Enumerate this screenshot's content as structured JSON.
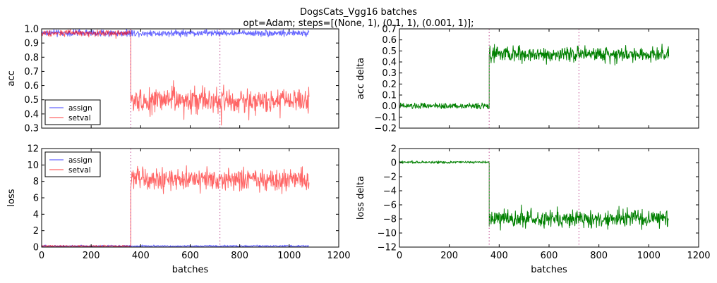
{
  "figure": {
    "title_line1": "DogsCats_Vgg16 batches",
    "title_line2": "opt=Adam; steps=[(None, 1), (0.1, 1), (0.001, 1)];"
  },
  "colors": {
    "assign": "#0000ff",
    "setval": "#ff0000",
    "delta": "#008000",
    "vline": "#c864a0"
  },
  "chart_data": [
    {
      "id": "acc",
      "type": "line",
      "title": "",
      "xlabel": "",
      "ylabel": "acc",
      "xlim": [
        0,
        1200
      ],
      "ylim": [
        0.3,
        1.0
      ],
      "xticks": [],
      "xtick_labels": [],
      "yticks": [
        0.3,
        0.4,
        0.5,
        0.6,
        0.7,
        0.8,
        0.9,
        1.0
      ],
      "ytick_labels": [
        "0.3",
        "0.4",
        "0.5",
        "0.6",
        "0.7",
        "0.8",
        "0.9",
        "1.0"
      ],
      "grid": false,
      "legend": "lower-left",
      "vlines": [
        360,
        720
      ],
      "series": [
        {
          "name": "assign",
          "color": "#0000ff",
          "alpha": 0.6,
          "segments": [
            {
              "x0": 0,
              "x1": 1080,
              "mean": 0.97,
              "amp": 0.02
            }
          ]
        },
        {
          "name": "setval",
          "color": "#ff0000",
          "alpha": 0.6,
          "segments": [
            {
              "x0": 0,
              "x1": 360,
              "mean": 0.97,
              "amp": 0.02
            },
            {
              "x0": 360,
              "x1": 1080,
              "mean": 0.49,
              "amp": 0.08
            }
          ]
        }
      ]
    },
    {
      "id": "accd",
      "type": "line",
      "title": "",
      "xlabel": "",
      "ylabel": "acc delta",
      "xlim": [
        0,
        1200
      ],
      "ylim": [
        -0.2,
        0.7
      ],
      "xticks": [],
      "xtick_labels": [],
      "yticks": [
        -0.2,
        -0.1,
        0.0,
        0.1,
        0.2,
        0.3,
        0.4,
        0.5,
        0.6,
        0.7
      ],
      "ytick_labels": [
        "−0.2",
        "−0.1",
        "0.0",
        "0.1",
        "0.2",
        "0.3",
        "0.4",
        "0.5",
        "0.6",
        "0.7"
      ],
      "grid": false,
      "legend": "none",
      "vlines": [
        360,
        720
      ],
      "series": [
        {
          "name": "",
          "color": "#008000",
          "alpha": 1,
          "segments": [
            {
              "x0": 0,
              "x1": 360,
              "mean": 0.0,
              "amp": 0.025
            },
            {
              "x0": 360,
              "x1": 1080,
              "mean": 0.47,
              "amp": 0.06
            }
          ]
        }
      ]
    },
    {
      "id": "loss",
      "type": "line",
      "title": "",
      "xlabel": "batches",
      "ylabel": "loss",
      "xlim": [
        0,
        1200
      ],
      "ylim": [
        0,
        12
      ],
      "xticks": [
        0,
        200,
        400,
        600,
        800,
        1000,
        1200
      ],
      "xtick_labels": [
        "0",
        "200",
        "400",
        "600",
        "800",
        "1000",
        "1200"
      ],
      "yticks": [
        0,
        2,
        4,
        6,
        8,
        10,
        12
      ],
      "ytick_labels": [
        "0",
        "2",
        "4",
        "6",
        "8",
        "10",
        "12"
      ],
      "grid": false,
      "legend": "upper-left",
      "vlines": [
        360,
        720
      ],
      "series": [
        {
          "name": "assign",
          "color": "#0000ff",
          "alpha": 0.6,
          "segments": [
            {
              "x0": 0,
              "x1": 1080,
              "mean": 0.12,
              "amp": 0.1
            }
          ]
        },
        {
          "name": "setval",
          "color": "#ff0000",
          "alpha": 0.6,
          "segments": [
            {
              "x0": 0,
              "x1": 360,
              "mean": 0.12,
              "amp": 0.1
            },
            {
              "x0": 360,
              "x1": 1080,
              "mean": 8.2,
              "amp": 1.2
            }
          ]
        }
      ]
    },
    {
      "id": "lossd",
      "type": "line",
      "title": "",
      "xlabel": "batches",
      "ylabel": "loss delta",
      "xlim": [
        0,
        1200
      ],
      "ylim": [
        -12,
        2
      ],
      "xticks": [
        0,
        200,
        400,
        600,
        800,
        1000,
        1200
      ],
      "xtick_labels": [
        "0",
        "200",
        "400",
        "600",
        "800",
        "1000",
        "1200"
      ],
      "yticks": [
        -12,
        -10,
        -8,
        -6,
        -4,
        -2,
        0,
        2
      ],
      "ytick_labels": [
        "−12",
        "−10",
        "−8",
        "−6",
        "−4",
        "−2",
        "0",
        "2"
      ],
      "grid": false,
      "legend": "none",
      "vlines": [
        360,
        720
      ],
      "series": [
        {
          "name": "",
          "color": "#008000",
          "alpha": 1,
          "segments": [
            {
              "x0": 0,
              "x1": 360,
              "mean": 0.05,
              "amp": 0.15
            },
            {
              "x0": 360,
              "x1": 1080,
              "mean": -8.0,
              "amp": 1.1
            }
          ]
        }
      ]
    }
  ]
}
